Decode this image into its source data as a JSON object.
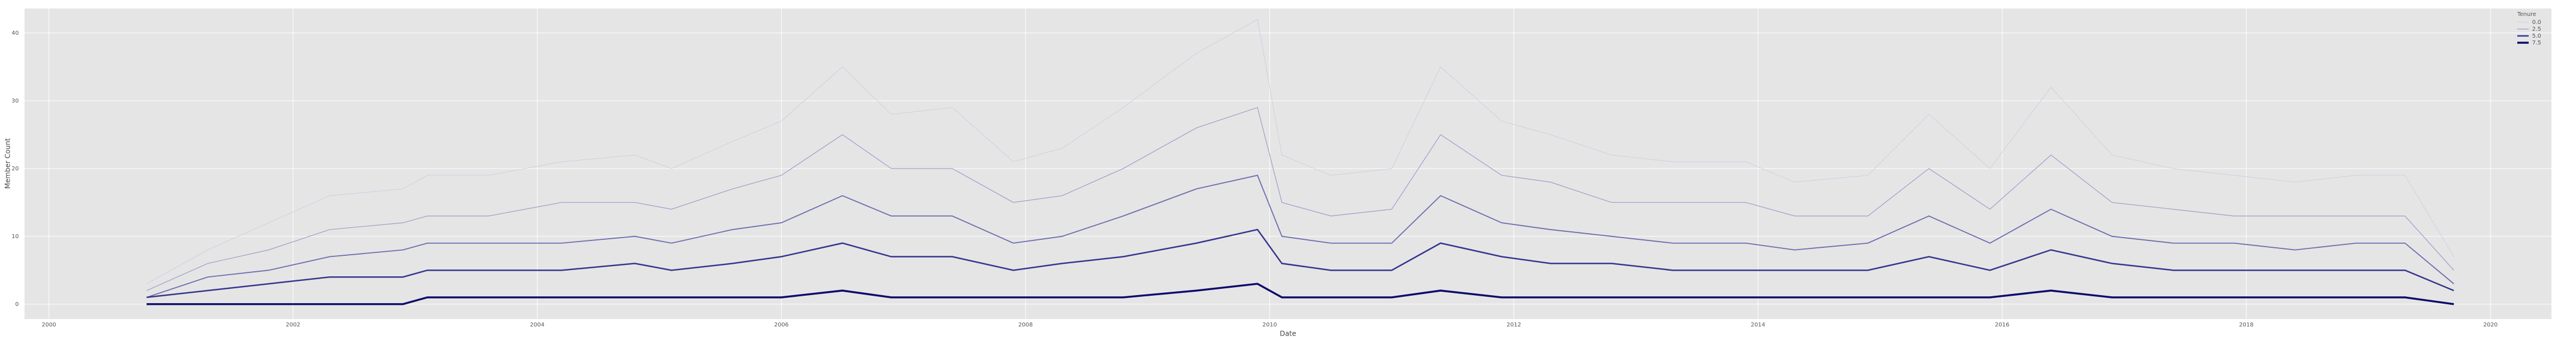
{
  "chart_data": {
    "type": "line",
    "xlabel": "Date",
    "ylabel": "Member Count",
    "x": [
      2000.8,
      2001.3,
      2001.8,
      2002.3,
      2002.9,
      2003.1,
      2003.6,
      2004.2,
      2004.8,
      2005.1,
      2005.6,
      2006.0,
      2006.5,
      2006.9,
      2007.4,
      2007.9,
      2008.3,
      2008.8,
      2009.4,
      2009.9,
      2010.1,
      2010.5,
      2011.0,
      2011.4,
      2011.9,
      2012.3,
      2012.8,
      2013.3,
      2013.9,
      2014.3,
      2014.9,
      2015.4,
      2015.9,
      2016.4,
      2016.9,
      2017.4,
      2017.9,
      2018.4,
      2018.9,
      2019.3,
      2019.7
    ],
    "series": [
      {
        "color": "#c9c9e3",
        "linewidth": 0.8,
        "values": [
          3,
          8,
          12,
          16,
          17,
          19,
          19,
          21,
          22,
          20,
          24,
          27,
          35,
          28,
          29,
          21,
          23,
          29,
          37,
          42,
          22,
          19,
          20,
          35,
          27,
          25,
          22,
          21,
          21,
          18,
          19,
          28,
          20,
          32,
          22,
          20,
          19,
          18,
          19,
          19,
          7
        ]
      },
      {
        "color": "#9d9dcc",
        "linewidth": 1.2,
        "values": [
          2,
          6,
          8,
          11,
          12,
          13,
          13,
          15,
          15,
          14,
          17,
          19,
          25,
          20,
          20,
          15,
          16,
          20,
          26,
          29,
          15,
          13,
          14,
          25,
          19,
          18,
          15,
          15,
          15,
          13,
          13,
          20,
          14,
          22,
          15,
          14,
          13,
          13,
          13,
          13,
          5
        ]
      },
      {
        "color": "#6c6cb0",
        "linewidth": 1.8,
        "values": [
          1,
          4,
          5,
          7,
          8,
          9,
          9,
          9,
          10,
          9,
          11,
          12,
          16,
          13,
          13,
          9,
          10,
          13,
          17,
          19,
          10,
          9,
          9,
          16,
          12,
          11,
          10,
          9,
          9,
          8,
          9,
          13,
          9,
          14,
          10,
          9,
          9,
          8,
          9,
          9,
          3
        ]
      },
      {
        "color": "#35358f",
        "linewidth": 2.5,
        "values": [
          1,
          2,
          3,
          4,
          4,
          5,
          5,
          5,
          6,
          5,
          6,
          7,
          9,
          7,
          7,
          5,
          6,
          7,
          9,
          11,
          6,
          5,
          5,
          9,
          7,
          6,
          6,
          5,
          5,
          5,
          5,
          7,
          5,
          8,
          6,
          5,
          5,
          5,
          5,
          5,
          2
        ]
      },
      {
        "color": "#0b0b6b",
        "linewidth": 3.4,
        "values": [
          0,
          0,
          0,
          0,
          0,
          1,
          1,
          1,
          1,
          1,
          1,
          1,
          2,
          1,
          1,
          1,
          1,
          1,
          2,
          3,
          1,
          1,
          1,
          2,
          1,
          1,
          1,
          1,
          1,
          1,
          1,
          1,
          1,
          2,
          1,
          1,
          1,
          1,
          1,
          1,
          0
        ]
      }
    ],
    "legend": {
      "title": "Tenure",
      "loc": "upper right",
      "entries": [
        {
          "label": "0.0",
          "color": "#c9c9e3",
          "linewidth": 0.8
        },
        {
          "label": "2.5",
          "color": "#9d9dcc",
          "linewidth": 1.2
        },
        {
          "label": "5.0",
          "color": "#35358f",
          "linewidth": 2.5
        },
        {
          "label": "7.5",
          "color": "#0b0b6b",
          "linewidth": 3.4
        }
      ]
    },
    "xlim": [
      1999.8,
      2020.5
    ],
    "xticks": [
      2000,
      2002,
      2004,
      2006,
      2008,
      2010,
      2012,
      2014,
      2016,
      2018,
      2020
    ],
    "ylim": [
      -2.2,
      43.6
    ],
    "yticks": [
      0,
      10,
      20,
      30,
      40
    ],
    "grid": true
  }
}
